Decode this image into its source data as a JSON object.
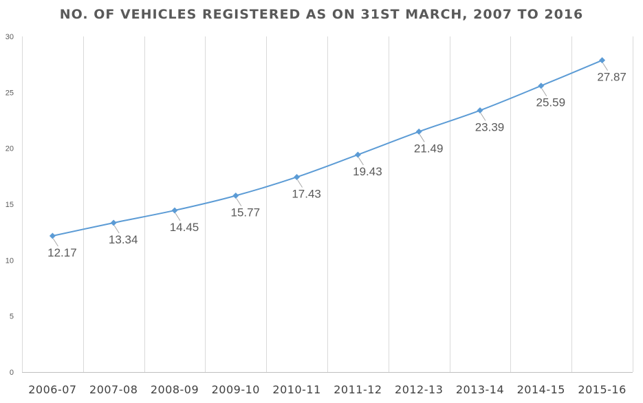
{
  "chart_data": {
    "type": "line",
    "title": "NO. OF VEHICLES REGISTERED AS ON 31ST MARCH, 2007 TO 2016",
    "xlabel": "",
    "ylabel": "",
    "categories": [
      "2006-07",
      "2007-08",
      "2008-09",
      "2009-10",
      "2010-11",
      "2011-12",
      "2012-13",
      "2013-14",
      "2014-15",
      "2015-16"
    ],
    "series": [
      {
        "values": [
          12.17,
          13.34,
          14.45,
          15.77,
          17.43,
          19.43,
          21.49,
          23.39,
          25.59,
          27.87
        ],
        "data_labels": [
          "12.17",
          "13.34",
          "14.45",
          "15.77",
          "17.43",
          "19.43",
          "21.49",
          "23.39",
          "25.59",
          "27.87"
        ]
      }
    ],
    "ylim": [
      0,
      30
    ],
    "y_ticks": [
      0,
      5,
      10,
      15,
      20,
      25,
      30
    ],
    "y_tick_labels": [
      "0",
      "5",
      "10",
      "15",
      "20",
      "25",
      "30"
    ],
    "grid": "vertical",
    "marker": "diamond",
    "legend": "none",
    "colors": {
      "series": "#5b9bd5",
      "marker": "#5b9bd5",
      "grid": "#d9d9d9",
      "text": "#595959"
    }
  }
}
